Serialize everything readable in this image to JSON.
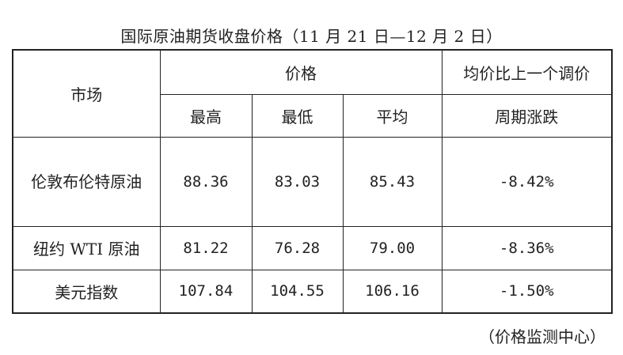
{
  "title": "国际原油期货收盘价格（11 月 21 日—12 月 2 日）",
  "table": {
    "header": {
      "market": "市场",
      "price": "价格",
      "change_line1": "均价比上一个调价",
      "change_line2": "周期涨跌",
      "high": "最高",
      "low": "最低",
      "avg": "平均"
    },
    "rows": [
      {
        "market": "伦敦布伦特原油",
        "high": "88.36",
        "low": "83.03",
        "avg": "85.43",
        "change": "-8.42%"
      },
      {
        "market": "纽约 WTI 原油",
        "high": "81.22",
        "low": "76.28",
        "avg": "79.00",
        "change": "-8.36%"
      },
      {
        "market": "美元指数",
        "high": "107.84",
        "low": "104.55",
        "avg": "106.16",
        "change": "-1.50%"
      }
    ]
  },
  "source": "（价格监测中心）"
}
